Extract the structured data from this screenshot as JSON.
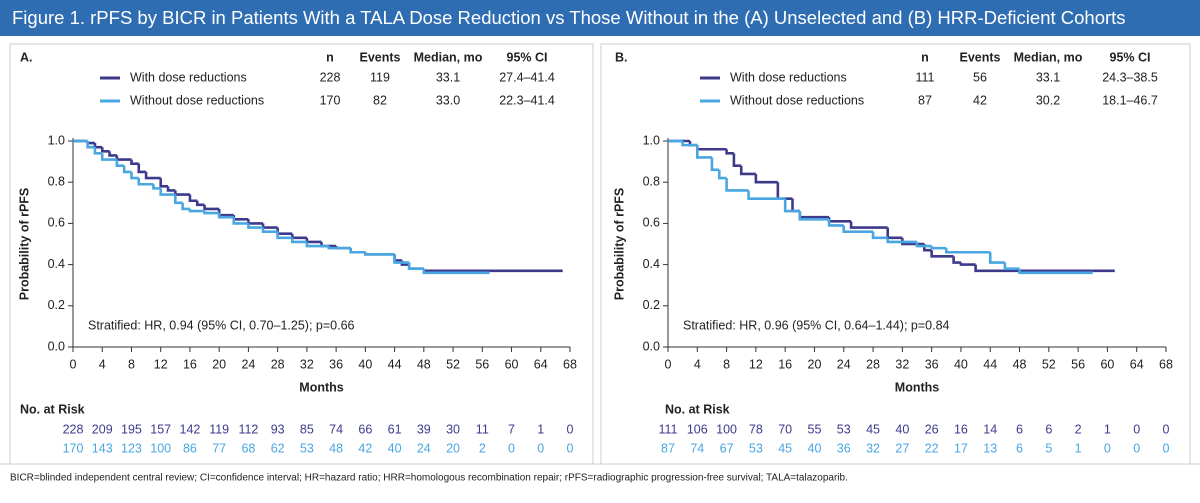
{
  "title": "Figure 1. rPFS by BICR in Patients With a TALA Dose Reduction vs Those Without in the (A) Unselected and (B) HRR-Deficient Cohorts",
  "footnote": "BICR=blinded independent central review; CI=confidence interval; HR=hazard ratio; HRR=homologous recombination repair; rPFS=radiographic progression-free survival; TALA=talazoparib.",
  "chart_data": [
    {
      "type": "step",
      "title": "A.",
      "xlabel": "Months",
      "ylabel": "Probability of rPFS",
      "xlim": [
        0,
        68
      ],
      "xticks": [
        0,
        4,
        8,
        12,
        16,
        20,
        24,
        28,
        32,
        36,
        40,
        44,
        48,
        52,
        56,
        60,
        64,
        68
      ],
      "ylim": [
        0,
        1
      ],
      "yticks": [
        {
          "value": 0,
          "label": "0.0"
        },
        {
          "value": 0.2,
          "label": "0.2"
        },
        {
          "value": 0.4,
          "label": "0.4"
        },
        {
          "value": 0.6,
          "label": "0.6"
        },
        {
          "value": 0.8,
          "label": "0.8"
        },
        {
          "value": 1,
          "label": "1.0"
        }
      ],
      "columns": [
        "n",
        "Events",
        "Median, mo",
        "95% CI"
      ],
      "annotation": "Stratified: HR, 0.94 (95% CI, 0.70–1.25); p=0.66",
      "risk_label": "No. at Risk",
      "series": [
        {
          "name": "With dose reductions",
          "color": "#3d3a8c",
          "stats": [
            228,
            119,
            "33.1",
            "27.4–41.4"
          ],
          "x": [
            0,
            2,
            3,
            4,
            5,
            6,
            8,
            9,
            10,
            12,
            13,
            14,
            16,
            17,
            18,
            20,
            22,
            24,
            26,
            28,
            30,
            32,
            34,
            36,
            38,
            40,
            44,
            45,
            46,
            48,
            67
          ],
          "values": [
            1,
            0.99,
            0.97,
            0.95,
            0.93,
            0.91,
            0.89,
            0.85,
            0.82,
            0.78,
            0.76,
            0.74,
            0.71,
            0.69,
            0.67,
            0.64,
            0.62,
            0.6,
            0.58,
            0.55,
            0.53,
            0.51,
            0.49,
            0.48,
            0.46,
            0.45,
            0.42,
            0.4,
            0.38,
            0.37,
            0.37
          ],
          "at_risk": [
            228,
            209,
            195,
            157,
            142,
            119,
            112,
            93,
            85,
            74,
            66,
            61,
            39,
            30,
            11,
            7,
            1,
            0
          ]
        },
        {
          "name": "Without dose reductions",
          "color": "#49a6e0",
          "stats": [
            170,
            82,
            "33.0",
            "22.3–41.4"
          ],
          "x": [
            0,
            2,
            3,
            4,
            6,
            7,
            8,
            9,
            11,
            12,
            14,
            15,
            16,
            18,
            20,
            22,
            24,
            26,
            28,
            30,
            32,
            35,
            38,
            40,
            44,
            46,
            48,
            57
          ],
          "values": [
            1,
            0.97,
            0.94,
            0.91,
            0.88,
            0.85,
            0.82,
            0.79,
            0.77,
            0.74,
            0.7,
            0.67,
            0.66,
            0.65,
            0.63,
            0.6,
            0.58,
            0.56,
            0.53,
            0.51,
            0.49,
            0.48,
            0.46,
            0.45,
            0.41,
            0.38,
            0.36,
            0.36
          ],
          "at_risk": [
            170,
            143,
            123,
            100,
            86,
            77,
            68,
            62,
            53,
            48,
            42,
            40,
            24,
            20,
            2,
            0,
            0,
            0
          ]
        }
      ]
    },
    {
      "type": "step",
      "title": "B.",
      "xlabel": "Months",
      "ylabel": "Probability of rPFS",
      "xlim": [
        0,
        68
      ],
      "xticks": [
        0,
        4,
        8,
        12,
        16,
        20,
        24,
        28,
        32,
        36,
        40,
        44,
        48,
        52,
        56,
        60,
        64,
        68
      ],
      "ylim": [
        0,
        1
      ],
      "yticks": [
        {
          "value": 0,
          "label": "0.0"
        },
        {
          "value": 0.2,
          "label": "0.2"
        },
        {
          "value": 0.4,
          "label": "0.4"
        },
        {
          "value": 0.6,
          "label": "0.6"
        },
        {
          "value": 0.8,
          "label": "0.8"
        },
        {
          "value": 1,
          "label": "1.0"
        }
      ],
      "columns": [
        "n",
        "Events",
        "Median, mo",
        "95% CI"
      ],
      "annotation": "Stratified: HR, 0.96 (95% CI, 0.64–1.44); p=0.84",
      "risk_label": "No. at Risk",
      "series": [
        {
          "name": "With dose reductions",
          "color": "#3d3a8c",
          "stats": [
            111,
            56,
            "33.1",
            "24.3–38.5"
          ],
          "x": [
            0,
            3,
            4,
            8,
            9,
            10,
            12,
            15,
            17,
            18,
            22,
            25,
            30,
            32,
            35,
            36,
            39,
            40,
            42,
            61
          ],
          "values": [
            1,
            0.98,
            0.96,
            0.94,
            0.88,
            0.84,
            0.8,
            0.72,
            0.66,
            0.63,
            0.61,
            0.58,
            0.53,
            0.5,
            0.47,
            0.44,
            0.41,
            0.4,
            0.37,
            0.37
          ],
          "at_risk": [
            111,
            106,
            100,
            78,
            70,
            55,
            53,
            45,
            40,
            26,
            16,
            14,
            6,
            6,
            2,
            1,
            0,
            0
          ]
        },
        {
          "name": "Without dose reductions",
          "color": "#49a6e0",
          "stats": [
            87,
            42,
            "30.2",
            "18.1–46.7"
          ],
          "x": [
            0,
            2,
            4,
            6,
            7,
            8,
            11,
            16,
            18,
            22,
            24,
            28,
            30,
            34,
            36,
            38,
            44,
            46,
            48,
            58
          ],
          "values": [
            1,
            0.98,
            0.92,
            0.86,
            0.82,
            0.76,
            0.72,
            0.66,
            0.62,
            0.59,
            0.56,
            0.53,
            0.51,
            0.49,
            0.48,
            0.46,
            0.41,
            0.38,
            0.36,
            0.36
          ],
          "at_risk": [
            87,
            74,
            67,
            53,
            45,
            40,
            36,
            32,
            27,
            22,
            17,
            13,
            6,
            5,
            1,
            0,
            0,
            0
          ]
        }
      ]
    }
  ]
}
